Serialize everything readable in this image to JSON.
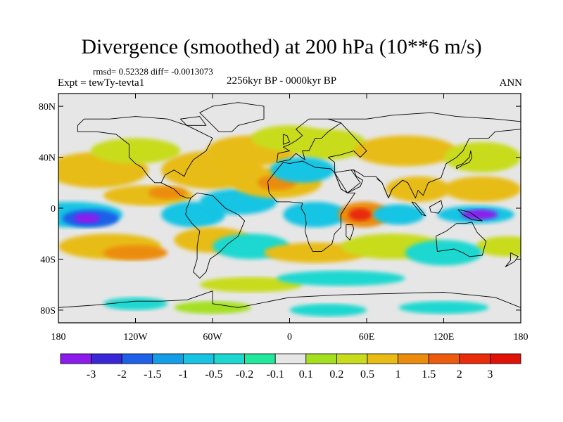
{
  "title": "Divergence (smoothed) at 200 hPa (10**6 m/s)",
  "stats_text": "rmsd= 0.52328 diff= -0.0013073",
  "period_text": "2256kyr BP - 0000kyr BP",
  "experiment_text": "Expt = tewTy-tevta1",
  "season_text": "ANN",
  "chart_data": {
    "type": "heatmap",
    "projection": "cylindrical-equidistant",
    "variable": "Divergence (smoothed) at 200 hPa",
    "units": "10**6 m/s",
    "lon_range": [
      -180,
      180
    ],
    "lat_range": [
      -90,
      90
    ],
    "x_tick_labels": [
      "180",
      "120W",
      "60W",
      "0",
      "60E",
      "120E",
      "180"
    ],
    "x_tick_values": [
      -180,
      -120,
      -60,
      0,
      60,
      120,
      180
    ],
    "y_tick_labels": [
      "80N",
      "40N",
      "0",
      "40S",
      "80S"
    ],
    "y_tick_values": [
      80,
      40,
      0,
      -40,
      -80
    ],
    "colorbar": {
      "levels": [
        "-3",
        "-2",
        "-1.5",
        "-1",
        "-0.5",
        "-0.2",
        "-0.1",
        "0.1",
        "0.2",
        "0.5",
        "1",
        "1.5",
        "2",
        "3"
      ],
      "colors": [
        "#8c1cec",
        "#3a28d8",
        "#1e60e8",
        "#149ee8",
        "#18c4e4",
        "#1cd8d0",
        "#20e89c",
        "#e6e6e6",
        "#a4e020",
        "#c8dc1c",
        "#e8bc14",
        "#ec8c0c",
        "#ec5c0c",
        "#e82c0c",
        "#e01208"
      ]
    },
    "background_color": "#e6e6e6",
    "features": [
      {
        "lon": -160,
        "lat": -5,
        "level": -3,
        "note": "strong convergence central Pacific"
      },
      {
        "lon": 145,
        "lat": -5,
        "level": -3,
        "note": "strong convergence Maritime Continent"
      },
      {
        "lon": 55,
        "lat": -5,
        "level": 3,
        "note": "strong divergence western Indian Ocean"
      },
      {
        "lon": -10,
        "lat": 20,
        "level": 1,
        "note": "divergence North Africa"
      },
      {
        "lon": -100,
        "lat": 10,
        "level": 1,
        "note": "divergence eastern Pacific"
      },
      {
        "lon": 20,
        "lat": -5,
        "level": -1,
        "note": "convergence Atlantic/Africa"
      }
    ]
  }
}
